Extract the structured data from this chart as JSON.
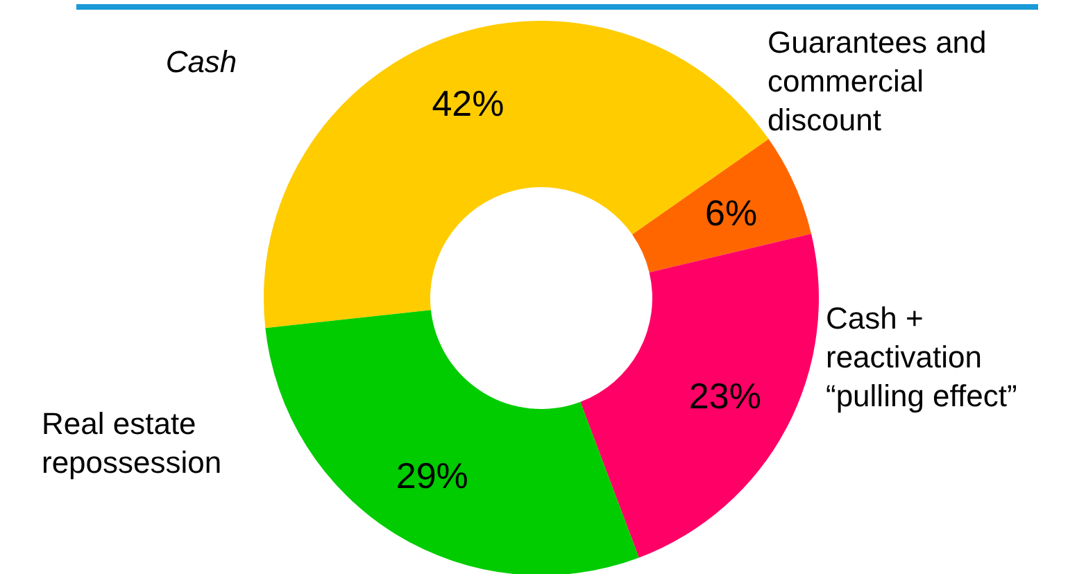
{
  "chart_data": {
    "type": "donut",
    "categories": [
      "Cash",
      "Guarantees and commercial discount",
      "Cash + reactivation “pulling effect”",
      "Real estate repossession"
    ],
    "values": [
      42,
      6,
      23,
      29
    ],
    "colors": [
      "#ffcc00",
      "#ff6600",
      "#ff0066",
      "#00cc00"
    ],
    "value_labels": [
      "42%",
      "6%",
      "23%",
      "29%"
    ]
  }
}
